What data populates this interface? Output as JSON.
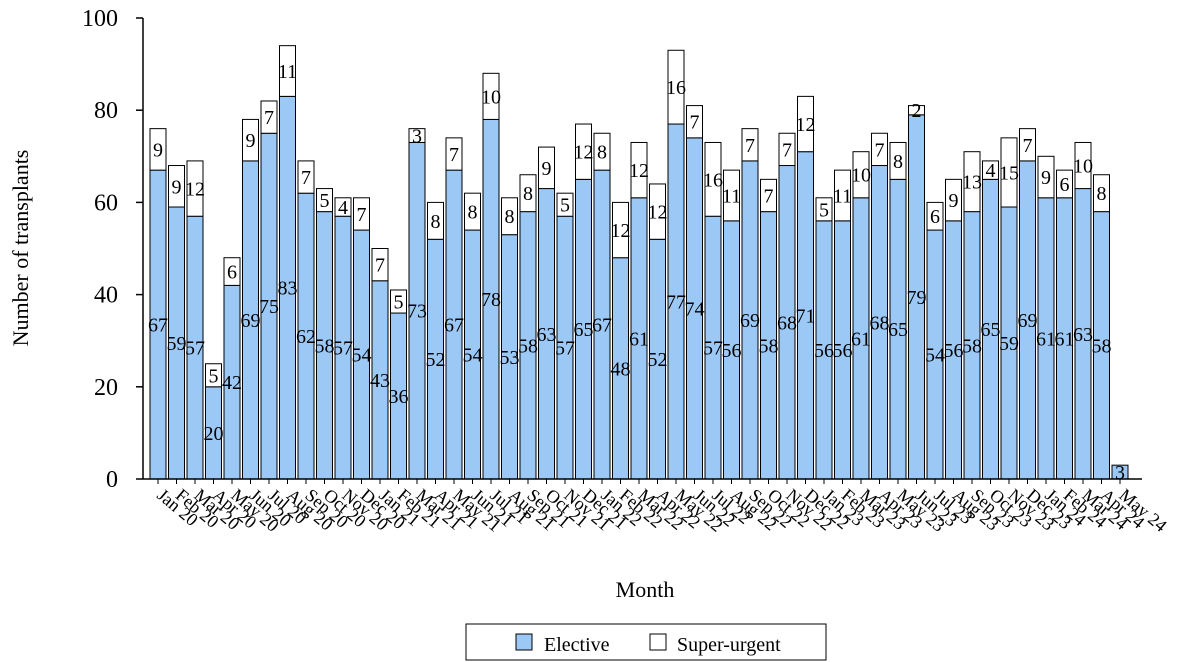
{
  "chart_data": {
    "type": "bar",
    "stacked": true,
    "title": "",
    "xlabel": "Month",
    "ylabel": "Number of transplants",
    "ylim": [
      0,
      100
    ],
    "yticks": [
      0,
      20,
      40,
      60,
      80,
      100
    ],
    "categories": [
      "Jan 20",
      "Feb 20",
      "Mar 20",
      "Apr 20",
      "May 20",
      "Jun 20",
      "Jul 20",
      "Aug 20",
      "Sep 20",
      "Oct 20",
      "Nov 20",
      "Dec 20",
      "Jan 21",
      "Feb 21",
      "Mar 21",
      "Apr 21",
      "May 21",
      "Jun 21",
      "Jul 21",
      "Aug 21",
      "Sep 21",
      "Oct 21",
      "Nov 21",
      "Dec 21",
      "Jan 22",
      "Feb 22",
      "Mar 22",
      "Apr 22",
      "May 22",
      "Jun 22",
      "Jul 22",
      "Aug 22",
      "Sep 22",
      "Oct 22",
      "Nov 22",
      "Dec 22",
      "Jan 23",
      "Feb 23",
      "Mar 23",
      "Apr 23",
      "May 23",
      "Jun 23",
      "Jul 23",
      "Aug 23",
      "Sep 23",
      "Oct 23",
      "Nov 23",
      "Dec 23",
      "Jan 24",
      "Feb 24",
      "Mar 24",
      "Apr 24",
      "May 24"
    ],
    "series": [
      {
        "name": "Elective",
        "color": "#9cc8f5",
        "values": [
          67,
          59,
          57,
          20,
          42,
          69,
          75,
          83,
          62,
          58,
          57,
          54,
          43,
          36,
          73,
          52,
          67,
          54,
          78,
          53,
          58,
          63,
          57,
          65,
          67,
          48,
          61,
          52,
          77,
          74,
          57,
          56,
          69,
          58,
          68,
          71,
          56,
          56,
          61,
          68,
          65,
          79,
          54,
          56,
          58,
          65,
          59,
          69,
          61,
          61,
          63,
          58,
          3
        ]
      },
      {
        "name": "Super-urgent",
        "color": "#ffffff",
        "values": [
          9,
          9,
          12,
          5,
          6,
          9,
          7,
          11,
          7,
          5,
          4,
          7,
          7,
          5,
          3,
          8,
          7,
          8,
          10,
          8,
          8,
          9,
          5,
          12,
          8,
          12,
          12,
          12,
          16,
          7,
          16,
          11,
          7,
          7,
          7,
          12,
          5,
          11,
          10,
          7,
          8,
          2,
          6,
          9,
          13,
          4,
          15,
          7,
          9,
          6,
          10,
          8,
          0
        ]
      }
    ],
    "legend": {
      "position": "bottom-center",
      "entries": [
        "Elective",
        "Super-urgent"
      ]
    },
    "grid": false
  }
}
